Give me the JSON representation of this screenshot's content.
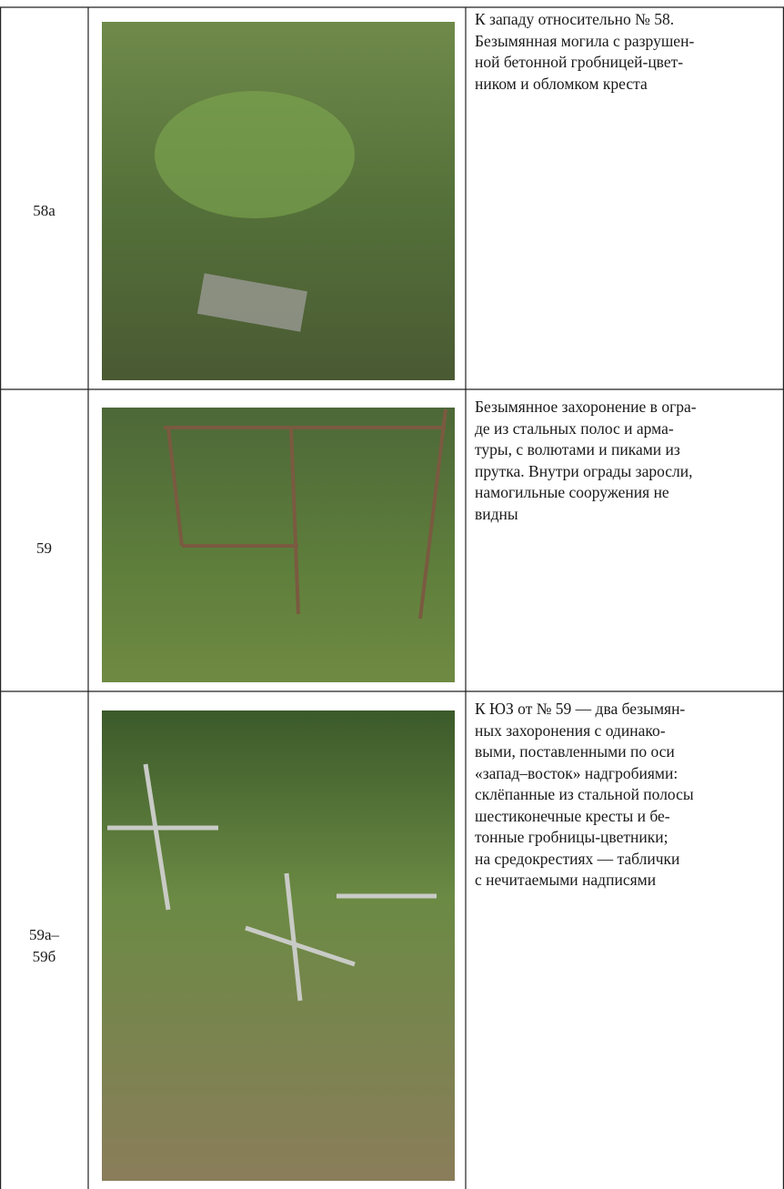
{
  "table": {
    "rows": [
      {
        "id": [
          "58а"
        ],
        "description": [
          "К западу относительно № 58.",
          "Безымянная могила с разрушен-",
          "ной бетонной гробницей-цвет-",
          "ником и обломком креста"
        ]
      },
      {
        "id": [
          "59"
        ],
        "description": [
          "Безымянное захоронение в огра-",
          "де из стальных полос и арма-",
          "туры, с волютами и пиками из",
          "прутка. Внутри ограды заросли,",
          "намогильные сооружения не",
          "видны"
        ]
      },
      {
        "id": [
          "59а–",
          "59б"
        ],
        "description": [
          "К ЮЗ от № 59 — два безымян-",
          "ных захоронения с одинако-",
          "выми, поставленными по оси",
          "«запад–восток» надгробиями:",
          "склёпанные из стальной полосы",
          "шестиконечные кресты и бе-",
          "тонные гробницы-цветники;",
          "на средокрестиях — таблички",
          "с нечитаемыми надписями"
        ]
      }
    ]
  }
}
